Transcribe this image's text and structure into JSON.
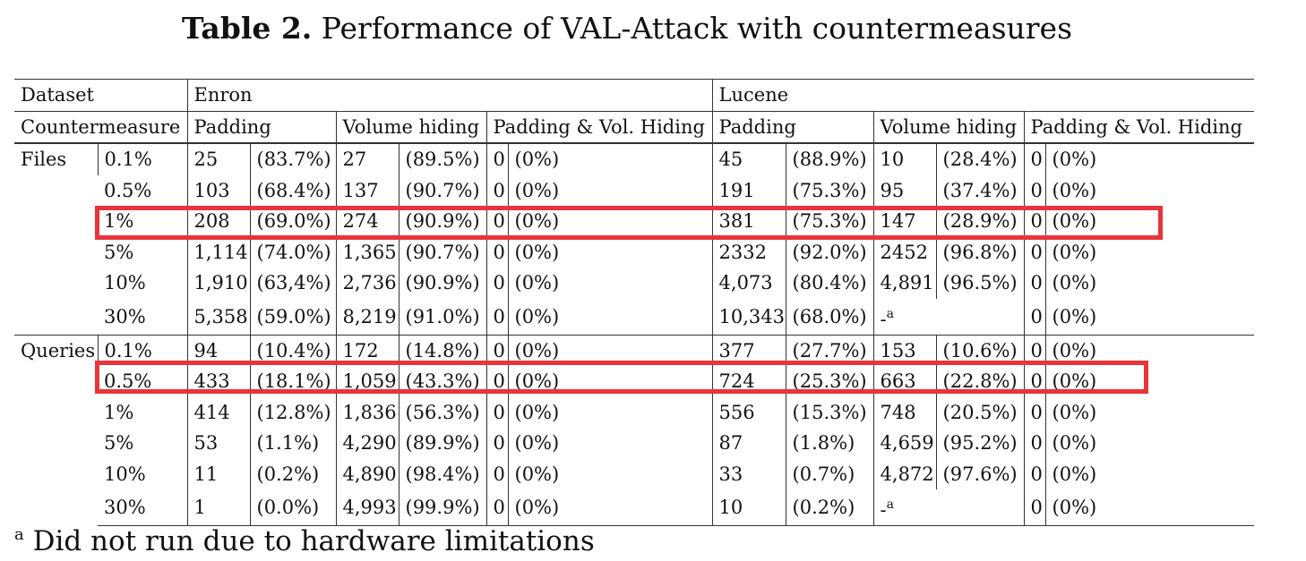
{
  "caption": {
    "label": "Table 2.",
    "text": "Performance of VAL-Attack with countermeasures"
  },
  "header": {
    "dataset_label": "Dataset",
    "countermeasure_label": "Countermeasure",
    "datasets": [
      "Enron",
      "Lucene"
    ],
    "columns": [
      "Padding",
      "Volume hiding",
      "Padding & Vol. Hiding"
    ]
  },
  "groups": [
    {
      "name": "Files",
      "rows": [
        {
          "level": "0.1%",
          "cells": [
            "25",
            "(83.7%)",
            "27",
            "(89.5%)",
            "0",
            "(0%)",
            "45",
            "(88.9%)",
            "10",
            "(28.4%)",
            "0",
            "(0%)"
          ]
        },
        {
          "level": "0.5%",
          "cells": [
            "103",
            "(68.4%)",
            "137",
            "(90.7%)",
            "0",
            "(0%)",
            "191",
            "(75.3%)",
            "95",
            "(37.4%)",
            "0",
            "(0%)"
          ]
        },
        {
          "level": "1%",
          "highlighted": true,
          "cells": [
            "208",
            "(69.0%)",
            "274",
            "(90.9%)",
            "0",
            "(0%)",
            "381",
            "(75.3%)",
            "147",
            "(28.9%)",
            "0",
            "(0%)"
          ]
        },
        {
          "level": "5%",
          "cells": [
            "1,114",
            "(74.0%)",
            "1,365",
            "(90.7%)",
            "0",
            "(0%)",
            "2332",
            "(92.0%)",
            "2452",
            "(96.8%)",
            "0",
            "(0%)"
          ]
        },
        {
          "level": "10%",
          "cells": [
            "1,910",
            "(63,4%)",
            "2,736",
            "(90.9%)",
            "0",
            "(0%)",
            "4,073",
            "(80.4%)",
            "4,891",
            "(96.5%)",
            "0",
            "(0%)"
          ]
        },
        {
          "level": "30%",
          "cells": [
            "5,358",
            "(59.0%)",
            "8,219",
            "(91.0%)",
            "0",
            "(0%)",
            "10,343",
            "(68.0%)",
            "-",
            "",
            "0",
            "(0%)"
          ],
          "footnote_cell": 8
        }
      ]
    },
    {
      "name": "Queries",
      "rows": [
        {
          "level": "0.1%",
          "cells": [
            "94",
            "(10.4%)",
            "172",
            "(14.8%)",
            "0",
            "(0%)",
            "377",
            "(27.7%)",
            "153",
            "(10.6%)",
            "0",
            "(0%)"
          ]
        },
        {
          "level": "0.5%",
          "highlighted": true,
          "cells": [
            "433",
            "(18.1%)",
            "1,059",
            "(43.3%)",
            "0",
            "(0%)",
            "724",
            "(25.3%)",
            "663",
            "(22.8%)",
            "0",
            "(0%)"
          ]
        },
        {
          "level": "1%",
          "cells": [
            "414",
            "(12.8%)",
            "1,836",
            "(56.3%)",
            "0",
            "(0%)",
            "556",
            "(15.3%)",
            "748",
            "(20.5%)",
            "0",
            "(0%)"
          ]
        },
        {
          "level": "5%",
          "cells": [
            "53",
            "(1.1%)",
            "4,290",
            "(89.9%)",
            "0",
            "(0%)",
            "87",
            "(1.8%)",
            "4,659",
            "(95.2%)",
            "0",
            "(0%)"
          ]
        },
        {
          "level": "10%",
          "cells": [
            "11",
            "(0.2%)",
            "4,890",
            "(98.4%)",
            "0",
            "(0%)",
            "33",
            "(0.7%)",
            "4,872",
            "(97.6%)",
            "0",
            "(0%)"
          ]
        },
        {
          "level": "30%",
          "cells": [
            "1",
            "(0.0%)",
            "4,993",
            "(99.9%)",
            "0",
            "(0%)",
            "10",
            "(0.2%)",
            "-",
            "",
            "0",
            "(0%)"
          ],
          "footnote_cell": 8
        }
      ]
    }
  ],
  "footnote": {
    "mark": "a",
    "text": "Did not run due to hardware limitations"
  },
  "colors": {
    "highlight": "#e8343a",
    "rule": "#333333",
    "text": "#111111"
  }
}
